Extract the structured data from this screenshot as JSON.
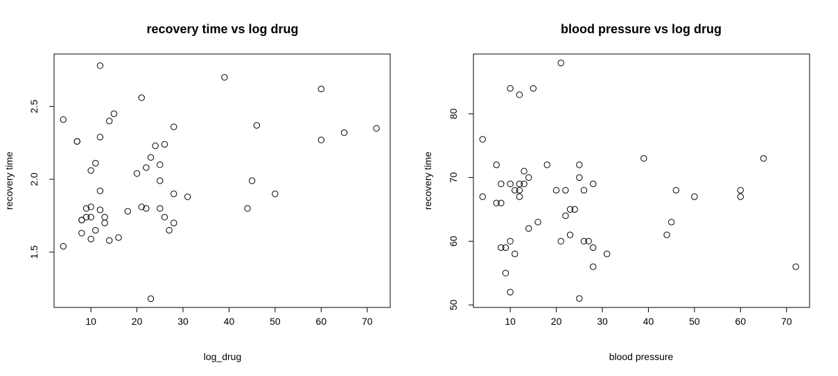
{
  "chart_data": [
    {
      "type": "scatter",
      "title": "recovery time vs log drug",
      "xlabel": "log_drug",
      "ylabel": "recovery time",
      "xlim": [
        2,
        75
      ],
      "ylim": [
        1.12,
        2.86
      ],
      "xticks": [
        10,
        20,
        30,
        40,
        50,
        60,
        70
      ],
      "xtick_labels": [
        "10",
        "20",
        "30",
        "40",
        "50",
        "60",
        "70"
      ],
      "yticks": [
        1.5,
        2.0,
        2.5
      ],
      "ytick_labels": [
        "1.5",
        "2.0",
        "2.5"
      ],
      "grid": false,
      "points": [
        {
          "x": 4,
          "y": 2.41
        },
        {
          "x": 4,
          "y": 1.54
        },
        {
          "x": 7,
          "y": 2.26
        },
        {
          "x": 7,
          "y": 2.26
        },
        {
          "x": 8,
          "y": 1.72
        },
        {
          "x": 8,
          "y": 1.72
        },
        {
          "x": 8,
          "y": 1.63
        },
        {
          "x": 9,
          "y": 1.8
        },
        {
          "x": 9,
          "y": 1.74
        },
        {
          "x": 10,
          "y": 2.06
        },
        {
          "x": 10,
          "y": 1.81
        },
        {
          "x": 10,
          "y": 1.74
        },
        {
          "x": 10,
          "y": 1.59
        },
        {
          "x": 11,
          "y": 2.11
        },
        {
          "x": 11,
          "y": 1.65
        },
        {
          "x": 12,
          "y": 2.78
        },
        {
          "x": 12,
          "y": 2.29
        },
        {
          "x": 12,
          "y": 1.92
        },
        {
          "x": 12,
          "y": 1.79
        },
        {
          "x": 13,
          "y": 1.74
        },
        {
          "x": 13,
          "y": 1.7
        },
        {
          "x": 14,
          "y": 2.4
        },
        {
          "x": 14,
          "y": 1.58
        },
        {
          "x": 15,
          "y": 2.45
        },
        {
          "x": 16,
          "y": 1.6
        },
        {
          "x": 18,
          "y": 1.78
        },
        {
          "x": 20,
          "y": 2.04
        },
        {
          "x": 21,
          "y": 2.56
        },
        {
          "x": 21,
          "y": 1.81
        },
        {
          "x": 22,
          "y": 2.08
        },
        {
          "x": 22,
          "y": 1.8
        },
        {
          "x": 23,
          "y": 2.15
        },
        {
          "x": 23,
          "y": 1.18
        },
        {
          "x": 24,
          "y": 2.23
        },
        {
          "x": 25,
          "y": 2.1
        },
        {
          "x": 25,
          "y": 1.99
        },
        {
          "x": 25,
          "y": 1.8
        },
        {
          "x": 26,
          "y": 2.24
        },
        {
          "x": 26,
          "y": 1.74
        },
        {
          "x": 27,
          "y": 1.65
        },
        {
          "x": 28,
          "y": 2.36
        },
        {
          "x": 28,
          "y": 1.9
        },
        {
          "x": 28,
          "y": 1.7
        },
        {
          "x": 31,
          "y": 1.88
        },
        {
          "x": 39,
          "y": 2.7
        },
        {
          "x": 44,
          "y": 1.8
        },
        {
          "x": 45,
          "y": 1.99
        },
        {
          "x": 46,
          "y": 2.37
        },
        {
          "x": 50,
          "y": 1.9
        },
        {
          "x": 60,
          "y": 2.62
        },
        {
          "x": 60,
          "y": 2.27
        },
        {
          "x": 65,
          "y": 2.32
        },
        {
          "x": 72,
          "y": 2.35
        }
      ]
    },
    {
      "type": "scatter",
      "title": "blood pressure vs log drug",
      "xlabel": "blood pressure",
      "ylabel": "recovery time",
      "xlim": [
        2,
        75
      ],
      "ylim": [
        49.6,
        89.4
      ],
      "xticks": [
        10,
        20,
        30,
        40,
        50,
        60,
        70
      ],
      "xtick_labels": [
        "10",
        "20",
        "30",
        "40",
        "50",
        "60",
        "70"
      ],
      "yticks": [
        50,
        60,
        70,
        80
      ],
      "ytick_labels": [
        "50",
        "60",
        "70",
        "80"
      ],
      "grid": false,
      "points": [
        {
          "x": 4,
          "y": 76
        },
        {
          "x": 4,
          "y": 67
        },
        {
          "x": 7,
          "y": 72
        },
        {
          "x": 7,
          "y": 66
        },
        {
          "x": 8,
          "y": 69
        },
        {
          "x": 8,
          "y": 66
        },
        {
          "x": 8,
          "y": 59
        },
        {
          "x": 9,
          "y": 59
        },
        {
          "x": 9,
          "y": 55
        },
        {
          "x": 10,
          "y": 84
        },
        {
          "x": 10,
          "y": 69
        },
        {
          "x": 10,
          "y": 60
        },
        {
          "x": 10,
          "y": 52
        },
        {
          "x": 11,
          "y": 68
        },
        {
          "x": 11,
          "y": 58
        },
        {
          "x": 12,
          "y": 83
        },
        {
          "x": 12,
          "y": 69
        },
        {
          "x": 12,
          "y": 68
        },
        {
          "x": 12,
          "y": 67
        },
        {
          "x": 13,
          "y": 71
        },
        {
          "x": 13,
          "y": 69
        },
        {
          "x": 14,
          "y": 70
        },
        {
          "x": 14,
          "y": 62
        },
        {
          "x": 15,
          "y": 84
        },
        {
          "x": 16,
          "y": 63
        },
        {
          "x": 18,
          "y": 72
        },
        {
          "x": 20,
          "y": 68
        },
        {
          "x": 21,
          "y": 88
        },
        {
          "x": 21,
          "y": 60
        },
        {
          "x": 22,
          "y": 68
        },
        {
          "x": 22,
          "y": 64
        },
        {
          "x": 23,
          "y": 65
        },
        {
          "x": 23,
          "y": 61
        },
        {
          "x": 24,
          "y": 65
        },
        {
          "x": 25,
          "y": 72
        },
        {
          "x": 25,
          "y": 70
        },
        {
          "x": 25,
          "y": 51
        },
        {
          "x": 26,
          "y": 68
        },
        {
          "x": 26,
          "y": 60
        },
        {
          "x": 27,
          "y": 60
        },
        {
          "x": 28,
          "y": 69
        },
        {
          "x": 28,
          "y": 59
        },
        {
          "x": 28,
          "y": 56
        },
        {
          "x": 31,
          "y": 58
        },
        {
          "x": 39,
          "y": 73
        },
        {
          "x": 44,
          "y": 61
        },
        {
          "x": 45,
          "y": 63
        },
        {
          "x": 46,
          "y": 68
        },
        {
          "x": 50,
          "y": 67
        },
        {
          "x": 60,
          "y": 68
        },
        {
          "x": 60,
          "y": 67
        },
        {
          "x": 65,
          "y": 73
        },
        {
          "x": 72,
          "y": 56
        }
      ]
    }
  ]
}
